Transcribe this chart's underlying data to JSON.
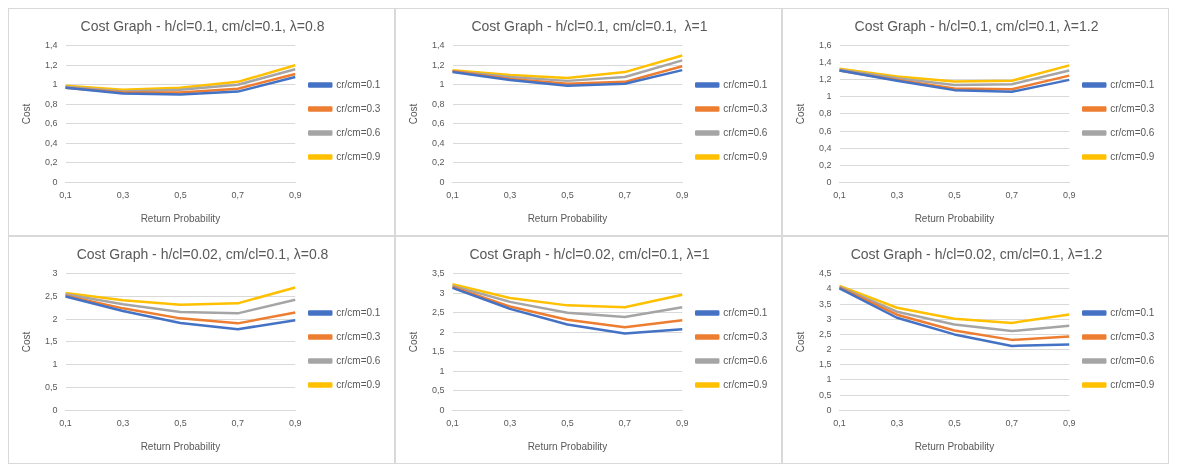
{
  "chart_data": [
    {
      "type": "line",
      "title": "Cost Graph - h/cl=0.1, cm/cl=0.1, λ=0.8",
      "xlabel": "Return Probability",
      "ylabel": "Cost",
      "categories": [
        "0,1",
        "0,3",
        "0,5",
        "0,7",
        "0,9"
      ],
      "ylim": [
        0,
        1.4
      ],
      "yticks": [
        0,
        {
          "value": 0.2,
          "label": "0,2"
        },
        {
          "value": 0.4,
          "label": "0,4"
        },
        {
          "value": 0.6,
          "label": "0,6"
        },
        {
          "value": 0.8,
          "label": "0,8"
        },
        1,
        {
          "value": 1.2,
          "label": "1,2"
        },
        {
          "value": 1.4,
          "label": "1,4"
        }
      ],
      "grid": "y",
      "legend": "right",
      "marker": "none",
      "series": [
        {
          "name": "cr/cm=0.1",
          "color": "#4472c4",
          "values": [
            0.97,
            0.91,
            0.9,
            0.93,
            1.08
          ]
        },
        {
          "name": "cr/cm=0.3",
          "color": "#ed7d31",
          "values": [
            0.97,
            0.92,
            0.92,
            0.96,
            1.11
          ]
        },
        {
          "name": "cr/cm=0.6",
          "color": "#a5a5a5",
          "values": [
            0.98,
            0.93,
            0.95,
            1.0,
            1.16
          ]
        },
        {
          "name": "cr/cm=0.9",
          "color": "#ffc000",
          "values": [
            0.99,
            0.95,
            0.97,
            1.03,
            1.2
          ]
        }
      ]
    },
    {
      "type": "line",
      "title": "Cost Graph - h/cl=0.1, cm/cl=0.1,  λ=1",
      "xlabel": "Return Probability",
      "ylabel": "Cost",
      "categories": [
        "0,1",
        "0,3",
        "0,5",
        "0,7",
        "0,9"
      ],
      "ylim": [
        0,
        1.4
      ],
      "yticks": [
        0,
        {
          "value": 0.2,
          "label": "0,2"
        },
        {
          "value": 0.4,
          "label": "0,4"
        },
        {
          "value": 0.6,
          "label": "0,6"
        },
        {
          "value": 0.8,
          "label": "0,8"
        },
        1,
        {
          "value": 1.2,
          "label": "1,2"
        },
        {
          "value": 1.4,
          "label": "1,4"
        }
      ],
      "grid": "y",
      "legend": "right",
      "marker": "none",
      "series": [
        {
          "name": "cr/cm=0.1",
          "color": "#4472c4",
          "values": [
            1.13,
            1.05,
            0.99,
            1.01,
            1.15
          ]
        },
        {
          "name": "cr/cm=0.3",
          "color": "#ed7d31",
          "values": [
            1.14,
            1.06,
            1.01,
            1.03,
            1.19
          ]
        },
        {
          "name": "cr/cm=0.6",
          "color": "#a5a5a5",
          "values": [
            1.14,
            1.08,
            1.04,
            1.08,
            1.25
          ]
        },
        {
          "name": "cr/cm=0.9",
          "color": "#ffc000",
          "values": [
            1.15,
            1.1,
            1.07,
            1.13,
            1.3
          ]
        }
      ]
    },
    {
      "type": "line",
      "title": "Cost Graph - h/cl=0.1, cm/cl=0.1, λ=1.2",
      "xlabel": "Return Probability",
      "ylabel": "Cost",
      "categories": [
        "0,1",
        "0,3",
        "0,5",
        "0,7",
        "0,9"
      ],
      "ylim": [
        0,
        1.6
      ],
      "yticks": [
        0,
        {
          "value": 0.2,
          "label": "0,2"
        },
        {
          "value": 0.4,
          "label": "0,4"
        },
        {
          "value": 0.6,
          "label": "0,6"
        },
        {
          "value": 0.8,
          "label": "0,8"
        },
        1,
        {
          "value": 1.2,
          "label": "1,2"
        },
        {
          "value": 1.4,
          "label": "1,4"
        },
        {
          "value": 1.6,
          "label": "1,6"
        }
      ],
      "grid": "y",
      "legend": "right",
      "marker": "none",
      "series": [
        {
          "name": "cr/cm=0.1",
          "color": "#4472c4",
          "values": [
            1.31,
            1.19,
            1.08,
            1.06,
            1.2
          ]
        },
        {
          "name": "cr/cm=0.3",
          "color": "#ed7d31",
          "values": [
            1.31,
            1.2,
            1.1,
            1.09,
            1.25
          ]
        },
        {
          "name": "cr/cm=0.6",
          "color": "#a5a5a5",
          "values": [
            1.32,
            1.22,
            1.14,
            1.15,
            1.31
          ]
        },
        {
          "name": "cr/cm=0.9",
          "color": "#ffc000",
          "values": [
            1.33,
            1.24,
            1.18,
            1.19,
            1.37
          ]
        }
      ]
    },
    {
      "type": "line",
      "title": "Cost Graph - h/cl=0.02, cm/cl=0.1, λ=0.8",
      "xlabel": "Return Probability",
      "ylabel": "Cost",
      "categories": [
        "0,1",
        "0,3",
        "0,5",
        "0,7",
        "0,9"
      ],
      "ylim": [
        0,
        3
      ],
      "yticks": [
        0,
        {
          "value": 0.5,
          "label": "0,5"
        },
        1,
        {
          "value": 1.5,
          "label": "1,5"
        },
        2,
        {
          "value": 2.5,
          "label": "2,5"
        },
        3
      ],
      "grid": "y",
      "legend": "right",
      "marker": "none",
      "series": [
        {
          "name": "cr/cm=0.1",
          "color": "#4472c4",
          "values": [
            2.5,
            2.18,
            1.92,
            1.78,
            1.98
          ]
        },
        {
          "name": "cr/cm=0.3",
          "color": "#ed7d31",
          "values": [
            2.52,
            2.24,
            2.02,
            1.91,
            2.15
          ]
        },
        {
          "name": "cr/cm=0.6",
          "color": "#a5a5a5",
          "values": [
            2.55,
            2.33,
            2.16,
            2.13,
            2.43
          ]
        },
        {
          "name": "cr/cm=0.9",
          "color": "#ffc000",
          "values": [
            2.58,
            2.42,
            2.32,
            2.35,
            2.7
          ]
        }
      ]
    },
    {
      "type": "line",
      "title": "Cost Graph - h/cl=0.02, cm/cl=0.1, λ=1",
      "xlabel": "Return Probability",
      "ylabel": "Cost",
      "categories": [
        "0,1",
        "0,3",
        "0,5",
        "0,7",
        "0,9"
      ],
      "ylim": [
        0,
        3.5
      ],
      "yticks": [
        0,
        {
          "value": 0.5,
          "label": "0,5"
        },
        1,
        {
          "value": 1.5,
          "label": "1,5"
        },
        2,
        {
          "value": 2.5,
          "label": "2,5"
        },
        3,
        {
          "value": 3.5,
          "label": "3,5"
        }
      ],
      "grid": "y",
      "legend": "right",
      "marker": "none",
      "series": [
        {
          "name": "cr/cm=0.1",
          "color": "#4472c4",
          "values": [
            3.14,
            2.6,
            2.2,
            1.97,
            2.08
          ]
        },
        {
          "name": "cr/cm=0.3",
          "color": "#ed7d31",
          "values": [
            3.16,
            2.66,
            2.32,
            2.13,
            2.31
          ]
        },
        {
          "name": "cr/cm=0.6",
          "color": "#a5a5a5",
          "values": [
            3.19,
            2.78,
            2.5,
            2.39,
            2.64
          ]
        },
        {
          "name": "cr/cm=0.9",
          "color": "#ffc000",
          "values": [
            3.23,
            2.88,
            2.69,
            2.64,
            2.96
          ]
        }
      ]
    },
    {
      "type": "line",
      "title": "Cost Graph - h/cl=0.02, cm/cl=0.1, λ=1.2",
      "xlabel": "Return Probability",
      "ylabel": "Cost",
      "categories": [
        "0,1",
        "0,3",
        "0,5",
        "0,7",
        "0,9"
      ],
      "ylim": [
        0,
        4.5
      ],
      "yticks": [
        0,
        {
          "value": 0.5,
          "label": "0,5"
        },
        1,
        {
          "value": 1.5,
          "label": "1,5"
        },
        2,
        {
          "value": 2.5,
          "label": "2,5"
        },
        3,
        {
          "value": 3.5,
          "label": "3,5"
        },
        4,
        {
          "value": 4.5,
          "label": "4,5"
        }
      ],
      "grid": "y",
      "legend": "right",
      "marker": "none",
      "series": [
        {
          "name": "cr/cm=0.1",
          "color": "#4472c4",
          "values": [
            4.02,
            3.05,
            2.5,
            2.12,
            2.17
          ]
        },
        {
          "name": "cr/cm=0.3",
          "color": "#ed7d31",
          "values": [
            4.04,
            3.15,
            2.63,
            2.32,
            2.43
          ]
        },
        {
          "name": "cr/cm=0.6",
          "color": "#a5a5a5",
          "values": [
            4.07,
            3.25,
            2.83,
            2.61,
            2.79
          ]
        },
        {
          "name": "cr/cm=0.9",
          "color": "#ffc000",
          "values": [
            4.1,
            3.38,
            3.02,
            2.88,
            3.16
          ]
        }
      ]
    }
  ]
}
